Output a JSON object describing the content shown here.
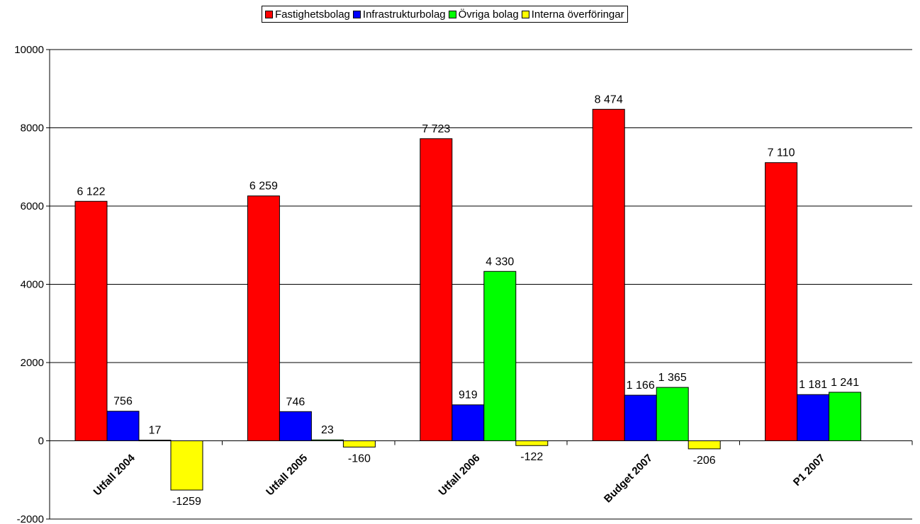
{
  "chart_data": {
    "type": "bar",
    "title": "",
    "xlabel": "",
    "ylabel": "",
    "categories": [
      "Utfall 2004",
      "Utfall 2005",
      "Utfall 2006",
      "Budget 2007",
      "P1 2007"
    ],
    "ylim": [
      -2000,
      10000
    ],
    "yticks": [
      -2000,
      0,
      2000,
      4000,
      6000,
      8000,
      10000
    ],
    "ytick_labels": [
      "-2000",
      "0",
      "2000",
      "4000",
      "6000",
      "8000",
      "10000"
    ],
    "grid": true,
    "legend_position": "top-center",
    "series": [
      {
        "name": "Fastighetsbolag",
        "color": "#ff0000",
        "values": [
          6122,
          6259,
          7723,
          8474,
          7110
        ],
        "labels": [
          "6 122",
          "6 259",
          "7 723",
          "8 474",
          "7 110"
        ]
      },
      {
        "name": "Infrastrukturbolag",
        "color": "#0000ff",
        "values": [
          756,
          746,
          919,
          1166,
          1181
        ],
        "labels": [
          "756",
          "746",
          "919",
          "1 166",
          "1 181"
        ]
      },
      {
        "name": "Övriga bolag",
        "color": "#00ff00",
        "values": [
          17,
          23,
          4330,
          1365,
          1241
        ],
        "labels": [
          "17",
          "23",
          "4 330",
          "1 365",
          "1 241"
        ]
      },
      {
        "name": "Interna överföringar",
        "color": "#ffff00",
        "values": [
          -1259,
          -160,
          -122,
          -206,
          null
        ],
        "labels": [
          "-1259",
          "-160",
          "-122",
          "-206",
          ""
        ]
      }
    ]
  }
}
